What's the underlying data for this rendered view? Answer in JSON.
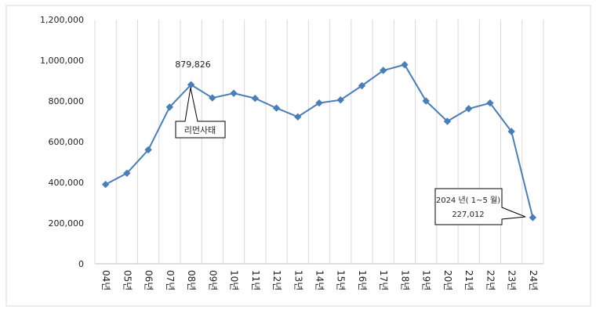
{
  "chart_data": {
    "type": "line",
    "categories": [
      "04년",
      "05년",
      "06년",
      "07년",
      "08년",
      "09년",
      "10년",
      "11년",
      "12년",
      "13년",
      "14년",
      "15년",
      "16년",
      "17년",
      "18년",
      "19년",
      "20년",
      "21년",
      "22년",
      "23년",
      "24년"
    ],
    "series": [
      {
        "values": [
          390000,
          445000,
          560000,
          770000,
          879826,
          815000,
          838000,
          813000,
          765000,
          722000,
          790000,
          805000,
          875000,
          950000,
          978000,
          800000,
          700000,
          762000,
          790000,
          650000,
          227012
        ]
      }
    ],
    "ylim": [
      0,
      1200000
    ],
    "yticks": [
      0,
      200000,
      400000,
      600000,
      800000,
      1000000,
      1200000
    ],
    "ytick_labels": [
      "0",
      "200,000",
      "400,000",
      "600,000",
      "800,000",
      "1,000,000",
      "1,200,000"
    ],
    "grid": "vertical",
    "line_color": "#4a7ebb",
    "annotations": {
      "peak_value": "879,826",
      "event_label": "리먼사태",
      "last_label_line1": "2024 년( 1~5 월)",
      "last_label_line2": "227,012"
    }
  }
}
